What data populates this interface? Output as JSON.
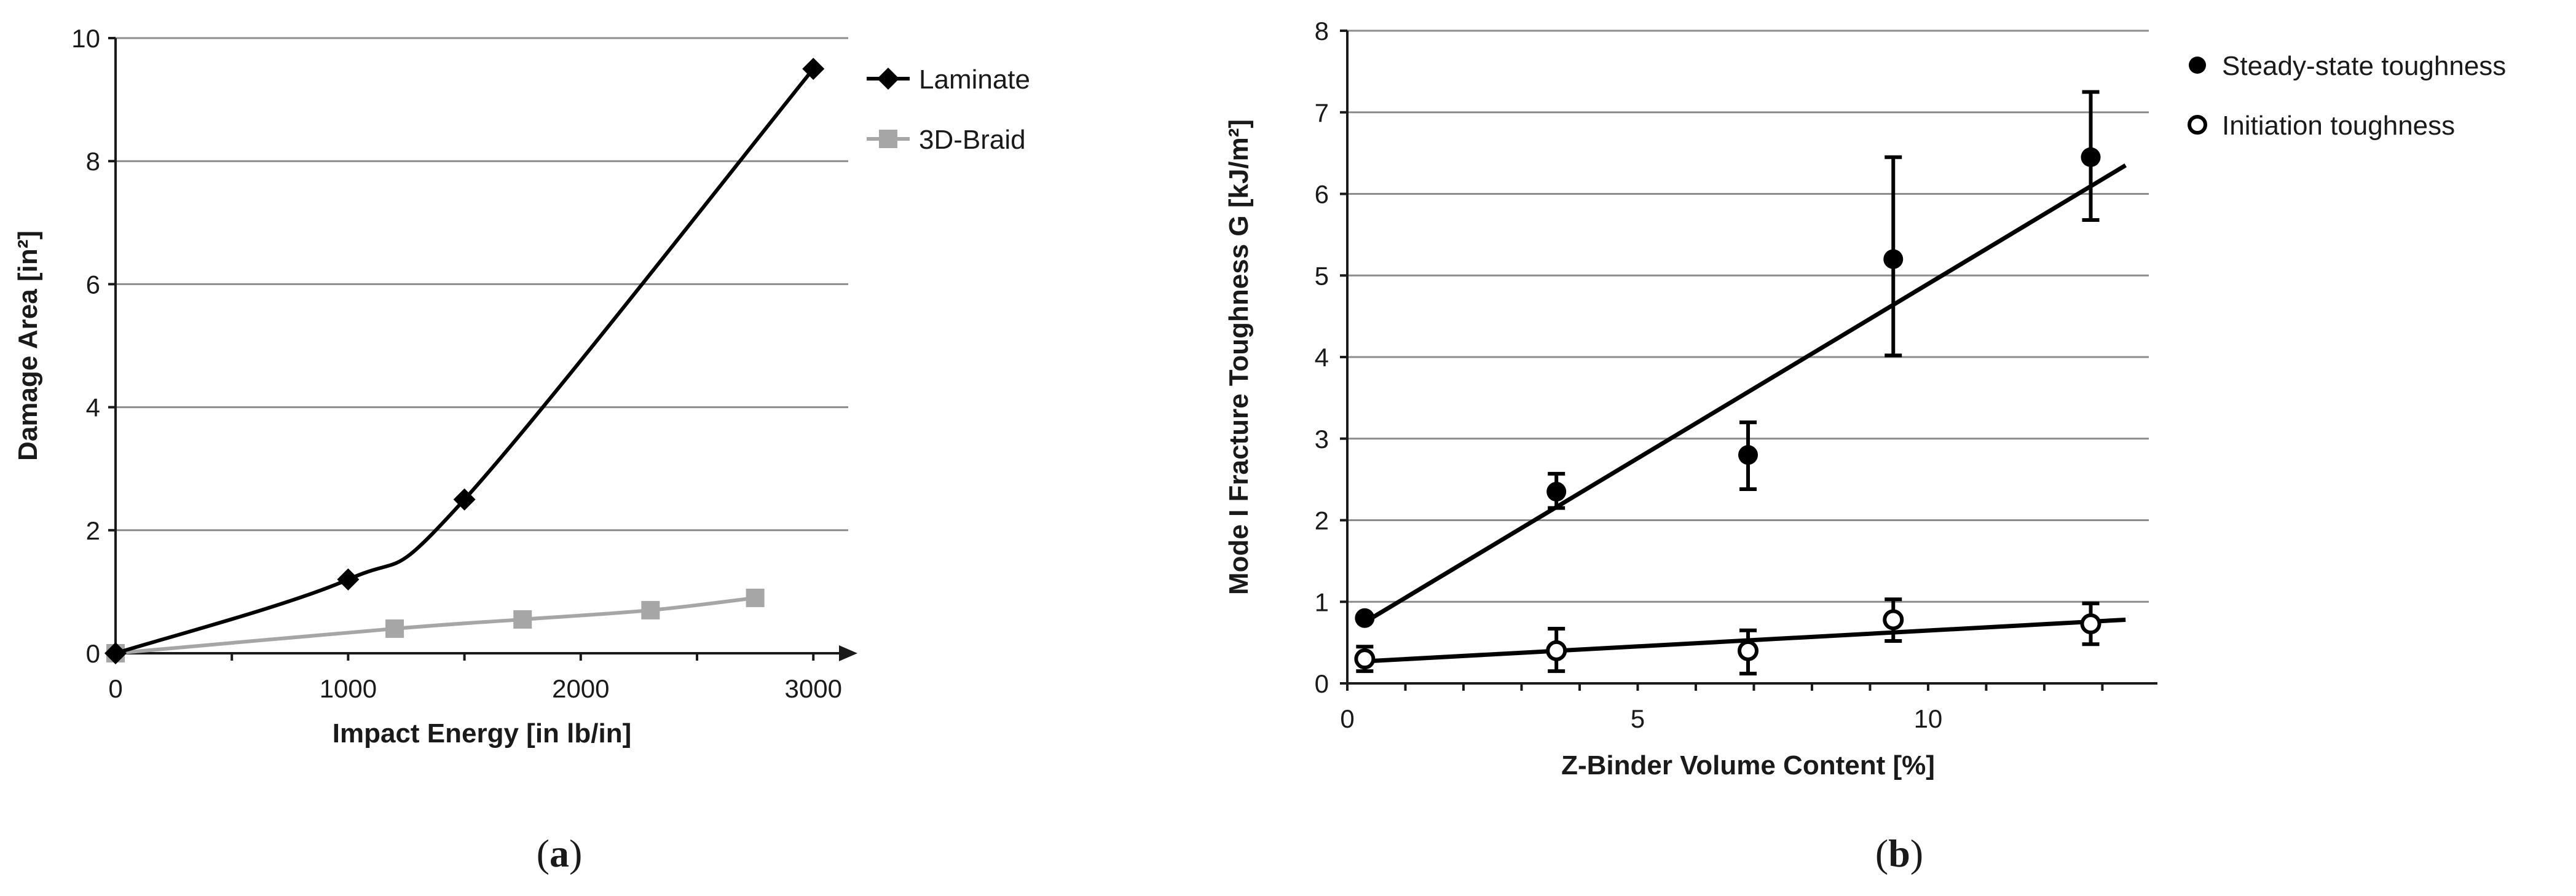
{
  "chart_data": [
    {
      "type": "line",
      "panel_label": "(a)",
      "panel_letter": "a",
      "xlabel": "Impact Energy [in lb/in]",
      "ylabel": "Damage Area [in²]",
      "xlim": [
        0,
        3150
      ],
      "ylim": [
        0,
        10
      ],
      "xticks": [
        0,
        1000,
        2000,
        3000
      ],
      "yticks": [
        0,
        2,
        4,
        6,
        8,
        10
      ],
      "grid": true,
      "legend_position": "top-right",
      "series": [
        {
          "name": "Laminate",
          "marker": "diamond",
          "color": "#000000",
          "x": [
            0,
            1000,
            1500,
            3000
          ],
          "y": [
            0,
            1.2,
            2.5,
            9.5
          ]
        },
        {
          "name": "3D-Braid",
          "marker": "square",
          "color": "#a6a6a6",
          "x": [
            0,
            1200,
            1750,
            2300,
            2750
          ],
          "y": [
            0,
            0.4,
            0.55,
            0.7,
            0.9
          ]
        }
      ]
    },
    {
      "type": "scatter",
      "panel_label": "(b)",
      "panel_letter": "b",
      "xlabel": "Z-Binder Volume Content [%]",
      "ylabel": "Mode I Fracture Toughness G [kJ/m²]",
      "xlim": [
        0,
        13.8
      ],
      "ylim": [
        0,
        8
      ],
      "xticks": [
        0,
        5,
        10
      ],
      "yticks": [
        0,
        1,
        2,
        3,
        4,
        5,
        6,
        7,
        8
      ],
      "grid": true,
      "legend_position": "top-right",
      "series": [
        {
          "name": "Steady-state toughness",
          "marker": "filled-circle",
          "color": "#000000",
          "x": [
            0.3,
            3.6,
            6.9,
            9.4,
            12.8
          ],
          "y": [
            0.8,
            2.35,
            2.8,
            5.2,
            6.45
          ],
          "err_low": [
            0.8,
            2.15,
            2.38,
            4.02,
            5.68
          ],
          "err_high": [
            0.8,
            2.57,
            3.2,
            6.45,
            7.25
          ],
          "trend": {
            "x": [
              0.3,
              13.4
            ],
            "y": [
              0.75,
              6.35
            ]
          }
        },
        {
          "name": "Initiation toughness",
          "marker": "open-circle",
          "color": "#000000",
          "x": [
            0.3,
            3.6,
            6.9,
            9.4,
            12.8
          ],
          "y": [
            0.3,
            0.4,
            0.4,
            0.78,
            0.73
          ],
          "err_low": [
            0.15,
            0.15,
            0.12,
            0.52,
            0.48
          ],
          "err_high": [
            0.45,
            0.67,
            0.65,
            1.03,
            0.98
          ],
          "trend": {
            "x": [
              0.3,
              13.4
            ],
            "y": [
              0.27,
              0.78
            ]
          }
        }
      ]
    }
  ]
}
